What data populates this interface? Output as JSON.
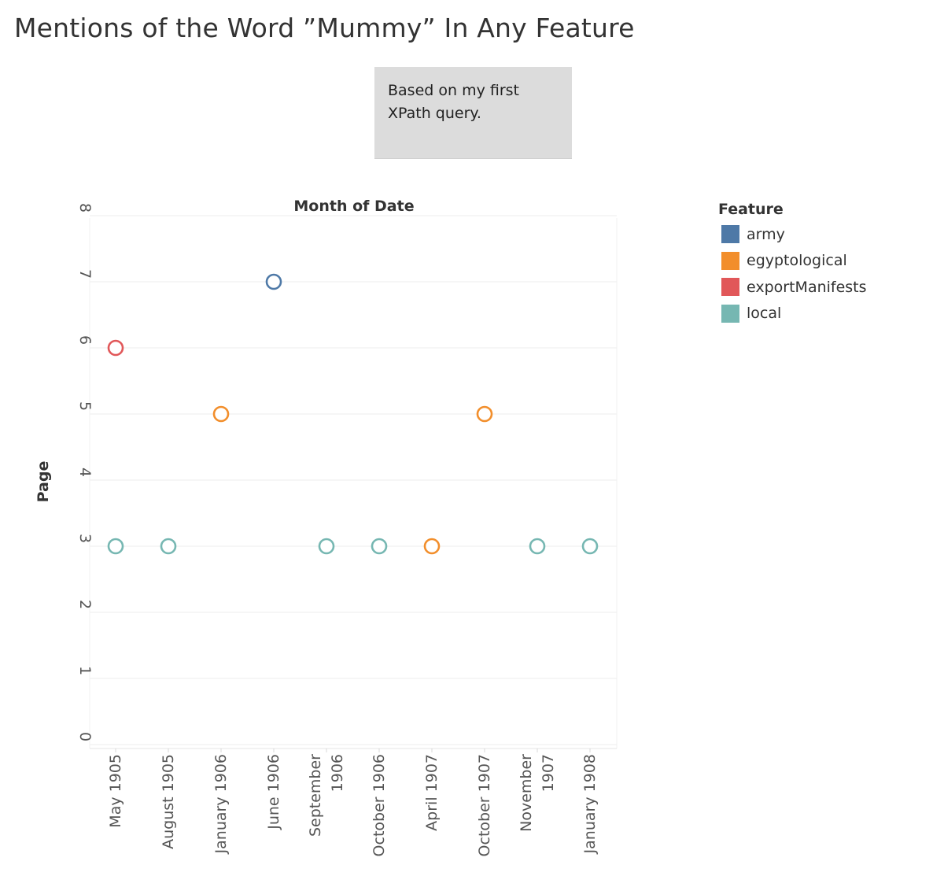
{
  "title": "Mentions of the Word ”Mummy” In Any Feature",
  "note": {
    "lines": [
      "Based on my first",
      "XPath query."
    ]
  },
  "colors": {
    "army": "#4e79a7",
    "egyptological": "#f28e2b",
    "exportManifests": "#e15759",
    "local": "#76b7b2",
    "gridline": "#ececec",
    "axis_text": "#555555"
  },
  "legend": {
    "title": "Feature",
    "items": [
      {
        "label": "army",
        "color": "#4e79a7"
      },
      {
        "label": "egyptological",
        "color": "#f28e2b"
      },
      {
        "label": "exportManifests",
        "color": "#e15759"
      },
      {
        "label": "local",
        "color": "#76b7b2"
      }
    ]
  },
  "chart_data": {
    "type": "scatter",
    "title": "Mentions of the Word ”Mummy” In Any Feature",
    "xlabel": "Month of Date",
    "ylabel": "Page",
    "categories": [
      [
        "May 1905"
      ],
      [
        "August 1905"
      ],
      [
        "January 1906"
      ],
      [
        "June 1906"
      ],
      [
        "September",
        "1906"
      ],
      [
        "October 1906"
      ],
      [
        "April 1907"
      ],
      [
        "October 1907"
      ],
      [
        "November",
        "1907"
      ],
      [
        "January 1908"
      ]
    ],
    "y_ticks": [
      0,
      1,
      2,
      3,
      4,
      5,
      6,
      7,
      8
    ],
    "ylim": [
      0,
      8
    ],
    "grid": true,
    "marker": "open-circle",
    "legend_position": "right",
    "series": [
      {
        "name": "army",
        "points": [
          {
            "x": "June 1906",
            "y": 7
          }
        ]
      },
      {
        "name": "egyptological",
        "points": [
          {
            "x": "January 1906",
            "y": 5
          },
          {
            "x": "April 1907",
            "y": 3
          },
          {
            "x": "October 1907",
            "y": 5
          }
        ]
      },
      {
        "name": "exportManifests",
        "points": [
          {
            "x": "May 1905",
            "y": 6
          }
        ]
      },
      {
        "name": "local",
        "points": [
          {
            "x": "May 1905",
            "y": 3
          },
          {
            "x": "August 1905",
            "y": 3
          },
          {
            "x": "September 1906",
            "y": 3
          },
          {
            "x": "October 1906",
            "y": 3
          },
          {
            "x": "November 1907",
            "y": 3
          },
          {
            "x": "January 1908",
            "y": 3
          }
        ]
      }
    ]
  }
}
